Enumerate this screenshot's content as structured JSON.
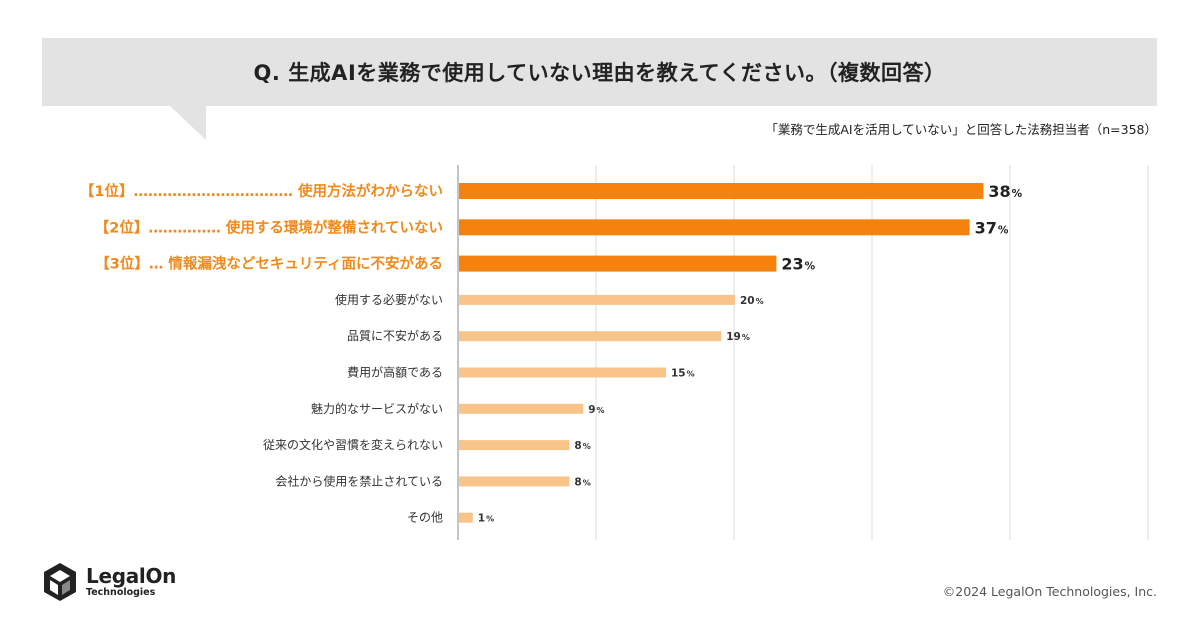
{
  "question": "Q. 生成AIを業務で使用していない理由を教えてください。（複数回答）",
  "subtitle": "「業務で生成AIを活用していない」と回答した法務担当者（n=358）",
  "brand": {
    "name": "LegalOn",
    "sub": "Technologies",
    "copyright": "©2024 LegalOn Technologies, Inc."
  },
  "colors": {
    "top_bar": "#f5820d",
    "other_bar": "#f9c48a",
    "top_label": "#f08a1c",
    "banner": "#e3e3e3"
  },
  "chart_data": {
    "type": "bar",
    "orientation": "horizontal",
    "title": "Q. 生成AIを業務で使用していない理由を教えてください。（複数回答）",
    "unit": "%",
    "xlim": [
      0,
      50
    ],
    "grid": true,
    "categories": [
      "【1位】…………………………… 使用方法がわからない",
      "【2位】…………… 使用する環境が整備されていない",
      "【3位】… 情報漏洩などセキュリティ面に不安がある",
      "使用する必要がない",
      "品質に不安がある",
      "費用が高額である",
      "魅力的なサービスがない",
      "従来の文化や習慣を変えられない",
      "会社から使用を禁止されている",
      "その他"
    ],
    "values": [
      38,
      37,
      23,
      20,
      19,
      15,
      9,
      8,
      8,
      1
    ],
    "highlight_top": 3
  }
}
